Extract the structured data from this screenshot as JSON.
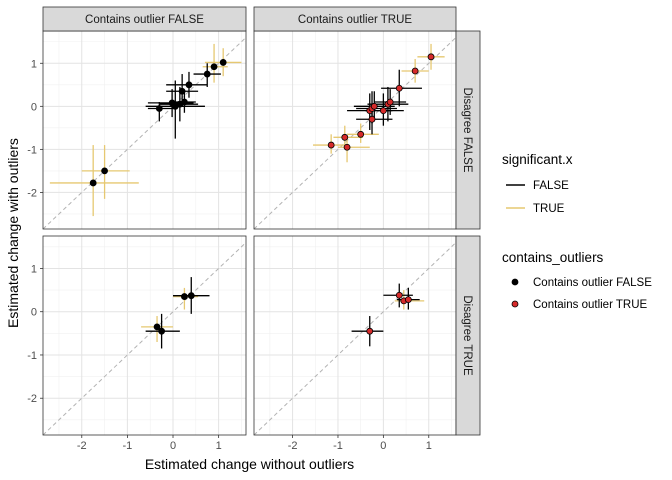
{
  "chart_data": {
    "type": "scatter",
    "x_axis": {
      "label": "Estimated change without outliers",
      "range": [
        -2.85,
        1.6
      ],
      "ticks": [
        -2,
        -1,
        0,
        1
      ],
      "tick_labels": [
        "-2",
        "-1",
        "0",
        "1"
      ]
    },
    "y_axis": {
      "label": "Estimated change with outliers",
      "range": [
        -2.85,
        1.75
      ],
      "ticks": [
        -2,
        -1,
        0,
        1
      ],
      "tick_labels": [
        "-2",
        "-1",
        "0",
        "1"
      ]
    },
    "grid": true,
    "reference_line": "y = x (dashed)",
    "col_facets": [
      "Contains outlier FALSE",
      "Contains outlier TRUE"
    ],
    "row_facets": [
      "Disagree FALSE",
      "Disagree TRUE"
    ],
    "legends": [
      {
        "title": "significant.x",
        "type": "line",
        "entries": [
          {
            "label": "FALSE",
            "color": "#000000"
          },
          {
            "label": "TRUE",
            "color": "#e6c871"
          }
        ]
      },
      {
        "title": "contains_outliers",
        "type": "point",
        "entries": [
          {
            "label": "Contains outlier FALSE",
            "color": "#000000"
          },
          {
            "label": "Contains outlier TRUE",
            "color": "#d62a2a"
          }
        ]
      }
    ],
    "colors": {
      "sig_false": "#000000",
      "sig_true": "#e6c871",
      "outlier_false": "#000000",
      "outlier_true": "#d62a2a",
      "reference": "#b3b3b3"
    },
    "panels": [
      {
        "row": 0,
        "col": 0,
        "points": [
          {
            "x": -1.75,
            "y": -1.78,
            "xmin": -2.7,
            "xmax": -0.75,
            "ymin": -2.55,
            "ymax": -0.9,
            "significant": true
          },
          {
            "x": -1.5,
            "y": -1.5,
            "xmin": -2.0,
            "xmax": -0.95,
            "ymin": -2.15,
            "ymax": -0.9,
            "significant": true
          },
          {
            "x": -0.3,
            "y": -0.05,
            "xmin": -0.55,
            "xmax": 0.1,
            "ymin": -0.35,
            "ymax": 0.1,
            "significant": false
          },
          {
            "x": -0.02,
            "y": 0.08,
            "xmin": -0.55,
            "xmax": 0.45,
            "ymin": -0.25,
            "ymax": 0.4,
            "significant": false
          },
          {
            "x": 0.05,
            "y": 0.0,
            "xmin": -0.6,
            "xmax": 0.7,
            "ymin": -0.75,
            "ymax": 0.6,
            "significant": false
          },
          {
            "x": 0.15,
            "y": 0.05,
            "xmin": -0.3,
            "xmax": 0.55,
            "ymin": -0.35,
            "ymax": 0.45,
            "significant": false
          },
          {
            "x": 0.2,
            "y": 0.35,
            "xmin": -0.15,
            "xmax": 0.55,
            "ymin": 0.0,
            "ymax": 0.75,
            "significant": false
          },
          {
            "x": 0.25,
            "y": 0.1,
            "xmin": 0.0,
            "xmax": 0.5,
            "ymin": -0.15,
            "ymax": 0.35,
            "significant": false
          },
          {
            "x": 0.35,
            "y": 0.5,
            "xmin": -0.15,
            "xmax": 0.75,
            "ymin": 0.2,
            "ymax": 0.8,
            "significant": false
          },
          {
            "x": 0.75,
            "y": 0.75,
            "xmin": 0.45,
            "xmax": 1.05,
            "ymin": 0.45,
            "ymax": 1.0,
            "significant": false
          },
          {
            "x": 0.9,
            "y": 0.92,
            "xmin": 0.65,
            "xmax": 1.2,
            "ymin": 0.55,
            "ymax": 1.45,
            "significant": true
          },
          {
            "x": 1.1,
            "y": 1.02,
            "xmin": 0.7,
            "xmax": 1.5,
            "ymin": 0.7,
            "ymax": 1.35,
            "significant": true
          }
        ]
      },
      {
        "row": 0,
        "col": 1,
        "points": [
          {
            "x": -1.15,
            "y": -0.9,
            "xmin": -1.55,
            "xmax": -0.75,
            "ymin": -1.1,
            "ymax": -0.65,
            "significant": true
          },
          {
            "x": -0.85,
            "y": -0.72,
            "xmin": -1.1,
            "xmax": -0.45,
            "ymin": -0.95,
            "ymax": -0.45,
            "significant": true
          },
          {
            "x": -0.8,
            "y": -0.95,
            "xmin": -1.0,
            "xmax": -0.3,
            "ymin": -1.3,
            "ymax": -0.7,
            "significant": true
          },
          {
            "x": -0.5,
            "y": -0.65,
            "xmin": -0.8,
            "xmax": -0.1,
            "ymin": -0.85,
            "ymax": -0.4,
            "significant": true
          },
          {
            "x": -0.3,
            "y": -0.1,
            "xmin": -0.8,
            "xmax": 0.2,
            "ymin": -0.55,
            "ymax": 0.3,
            "significant": false
          },
          {
            "x": -0.25,
            "y": -0.05,
            "xmin": -0.6,
            "xmax": 0.3,
            "ymin": -0.4,
            "ymax": 0.35,
            "significant": false
          },
          {
            "x": -0.25,
            "y": -0.3,
            "xmin": -0.6,
            "xmax": 0.2,
            "ymin": -0.65,
            "ymax": 0.05,
            "significant": false
          },
          {
            "x": -0.2,
            "y": 0.0,
            "xmin": -0.65,
            "xmax": 0.25,
            "ymin": -0.35,
            "ymax": 0.35,
            "significant": false
          },
          {
            "x": 0.0,
            "y": -0.1,
            "xmin": -0.4,
            "xmax": 0.45,
            "ymin": -0.45,
            "ymax": 0.3,
            "significant": false
          },
          {
            "x": 0.1,
            "y": 0.05,
            "xmin": -0.35,
            "xmax": 0.55,
            "ymin": -0.35,
            "ymax": 0.45,
            "significant": false
          },
          {
            "x": 0.15,
            "y": 0.1,
            "xmin": -0.2,
            "xmax": 0.5,
            "ymin": -0.2,
            "ymax": 0.4,
            "significant": false
          },
          {
            "x": 0.35,
            "y": 0.42,
            "xmin": -0.05,
            "xmax": 0.85,
            "ymin": 0.0,
            "ymax": 0.85,
            "significant": false
          },
          {
            "x": 0.7,
            "y": 0.82,
            "xmin": 0.4,
            "xmax": 1.0,
            "ymin": 0.55,
            "ymax": 1.1,
            "significant": true
          },
          {
            "x": 1.05,
            "y": 1.15,
            "xmin": 0.75,
            "xmax": 1.35,
            "ymin": 0.85,
            "ymax": 1.45,
            "significant": true
          }
        ]
      },
      {
        "row": 1,
        "col": 0,
        "points": [
          {
            "x": -0.35,
            "y": -0.35,
            "xmin": -0.7,
            "xmax": 0.0,
            "ymin": -0.7,
            "ymax": -0.1,
            "significant": true
          },
          {
            "x": -0.25,
            "y": -0.45,
            "xmin": -0.6,
            "xmax": 0.15,
            "ymin": -0.85,
            "ymax": -0.05,
            "significant": false
          },
          {
            "x": 0.25,
            "y": 0.35,
            "xmin": 0.0,
            "xmax": 0.55,
            "ymin": 0.05,
            "ymax": 0.55,
            "significant": true
          },
          {
            "x": 0.4,
            "y": 0.37,
            "xmin": 0.0,
            "xmax": 0.8,
            "ymin": -0.05,
            "ymax": 0.8,
            "significant": false
          }
        ]
      },
      {
        "row": 1,
        "col": 1,
        "points": [
          {
            "x": -0.3,
            "y": -0.45,
            "xmin": -0.7,
            "xmax": 0.0,
            "ymin": -0.8,
            "ymax": -0.1,
            "significant": false
          },
          {
            "x": 0.35,
            "y": 0.38,
            "xmin": 0.0,
            "xmax": 0.65,
            "ymin": 0.1,
            "ymax": 0.65,
            "significant": false
          },
          {
            "x": 0.45,
            "y": 0.25,
            "xmin": 0.25,
            "xmax": 0.9,
            "ymin": 0.05,
            "ymax": 0.5,
            "significant": true
          },
          {
            "x": 0.55,
            "y": 0.28,
            "xmin": 0.3,
            "xmax": 0.8,
            "ymin": 0.05,
            "ymax": 0.55,
            "significant": false
          }
        ]
      }
    ]
  }
}
